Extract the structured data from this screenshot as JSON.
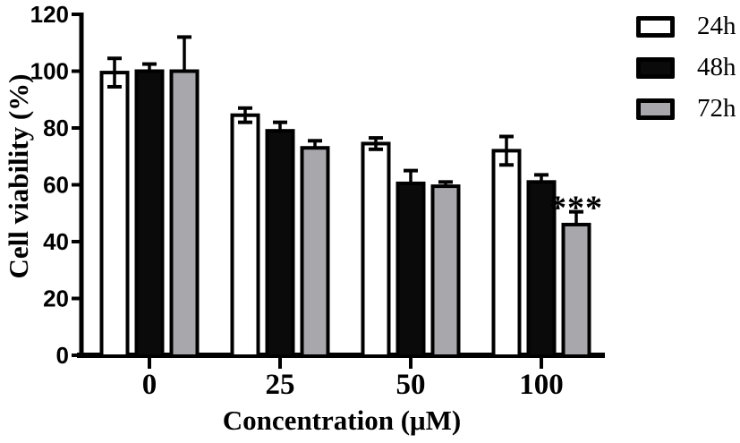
{
  "colors": {
    "axis": "#000000",
    "bar_outline": "#000000",
    "series_24h": "#ffffff",
    "series_48h": "#0a0a0a",
    "series_72h": "#a8a7ab",
    "background": "#ffffff"
  },
  "chart_data": {
    "type": "bar",
    "title": "",
    "xlabel": "Concentration (μM)",
    "ylabel": "Cell viability (%)",
    "categories": [
      "0",
      "25",
      "50",
      "100"
    ],
    "series": [
      {
        "name": "24h",
        "fill": "#ffffff",
        "values": [
          99.5,
          84.5,
          74.5,
          72
        ],
        "errors": [
          5,
          2.5,
          2,
          5
        ],
        "error_style": "both"
      },
      {
        "name": "48h",
        "fill": "#0a0a0a",
        "values": [
          100,
          79,
          60.5,
          61
        ],
        "errors": [
          2.5,
          3,
          4.5,
          2.5
        ],
        "error_style": "upper"
      },
      {
        "name": "72h",
        "fill": "#a8a7ab",
        "values": [
          100,
          73,
          59.5,
          46
        ],
        "errors": [
          12,
          2.5,
          1.5,
          4.5
        ],
        "error_style": "upper"
      }
    ],
    "y_ticks": [
      0,
      20,
      40,
      60,
      80,
      100,
      120
    ],
    "ylim": [
      0,
      120
    ],
    "grid": false,
    "legend_position": "top-right",
    "annotation": {
      "text": "***",
      "category_index": 3,
      "series_index": 2
    }
  }
}
